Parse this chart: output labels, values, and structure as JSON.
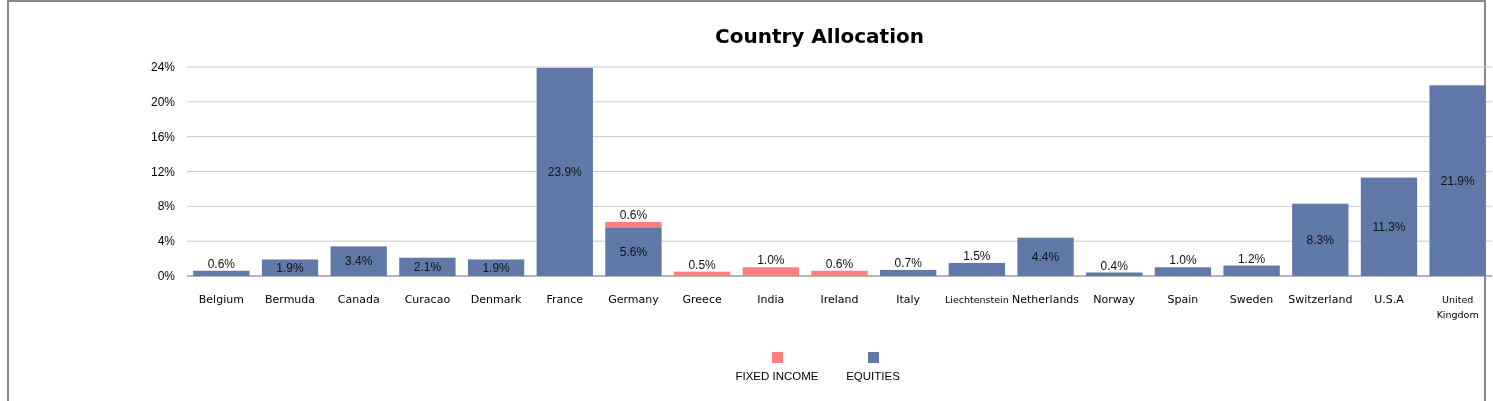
{
  "chart_data": {
    "type": "bar",
    "title": "Country Allocation",
    "stacked": true,
    "categories": [
      "Belgium",
      "Bermuda",
      "Canada",
      "Curacao",
      "Denmark",
      "France",
      "Germany",
      "Greece",
      "India",
      "Ireland",
      "Italy",
      "Liechtenstein",
      "Netherlands",
      "Norway",
      "Spain",
      "Sweden",
      "Switzerland",
      "U.S.A",
      "United Kingdom"
    ],
    "series": [
      {
        "name": "EQUITIES",
        "color": "#6079a8",
        "values": [
          0.6,
          1.9,
          3.4,
          2.1,
          1.9,
          23.9,
          5.6,
          null,
          null,
          null,
          0.7,
          1.5,
          4.4,
          0.4,
          1.0,
          1.2,
          8.3,
          11.3,
          21.9
        ],
        "value_labels": [
          "0.6%",
          "1.9%",
          "3.4%",
          "2.1%",
          "1.9%",
          "23.9%",
          "5.6%",
          null,
          null,
          null,
          "0.7%",
          "1.5%",
          "4.4%",
          "0.4%",
          "1.0%",
          "1.2%",
          "8.3%",
          "11.3%",
          "21.9%"
        ]
      },
      {
        "name": "FIXED INCOME",
        "color": "#ff7f7f",
        "values": [
          null,
          null,
          null,
          null,
          null,
          null,
          0.6,
          0.5,
          1.0,
          0.6,
          null,
          null,
          null,
          null,
          null,
          null,
          null,
          null,
          null
        ],
        "value_labels": [
          null,
          null,
          null,
          null,
          null,
          null,
          "0.6%",
          "0.5%",
          "1.0%",
          "0.6%",
          null,
          null,
          null,
          null,
          null,
          null,
          null,
          null,
          null
        ]
      }
    ],
    "ylim": [
      0,
      24
    ],
    "yticks": [
      {
        "value": 0,
        "label": "0%"
      },
      {
        "value": 4,
        "label": "4%"
      },
      {
        "value": 8,
        "label": "8%"
      },
      {
        "value": 12,
        "label": "12%"
      },
      {
        "value": 16,
        "label": "16%"
      },
      {
        "value": 20,
        "label": "20%"
      },
      {
        "value": 24,
        "label": "24%"
      }
    ],
    "grid": "y",
    "legend": "bottom"
  }
}
